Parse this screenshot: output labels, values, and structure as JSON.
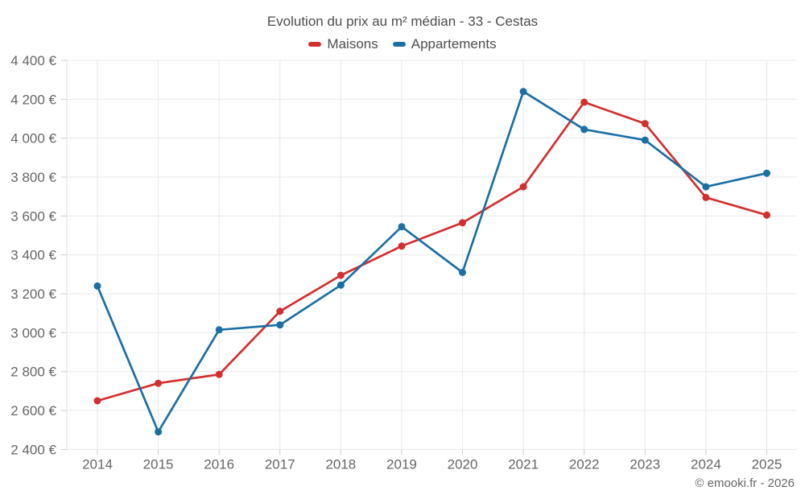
{
  "header": {
    "title": "Evolution du prix au m² médian - 33 - Cestas"
  },
  "legend": {
    "items": [
      {
        "label": "Maisons",
        "color": "#d32f2f"
      },
      {
        "label": "Appartements",
        "color": "#1a6fa4"
      }
    ]
  },
  "footer": {
    "credit": "© emooki.fr - 2026"
  },
  "colors": {
    "maisons": "#d32f2f",
    "appartements": "#1a6fa4",
    "grid": "#e8e8e8",
    "axis_line": "#e0e0e0",
    "tick": "#cccccc",
    "axis_text": "#666666",
    "title_text": "#4d4d4d",
    "footer_text": "#666666",
    "background": "#ffffff"
  },
  "chart_data": {
    "type": "line",
    "title": "Evolution du prix au m² médian - 33 - Cestas",
    "categories": [
      "2014",
      "2015",
      "2016",
      "2017",
      "2018",
      "2019",
      "2020",
      "2021",
      "2022",
      "2023",
      "2024",
      "2025"
    ],
    "series": [
      {
        "name": "Maisons",
        "color": "#d32f2f",
        "values": [
          2650,
          2740,
          2785,
          3110,
          3295,
          3445,
          3565,
          3750,
          4185,
          4075,
          3695,
          3605
        ]
      },
      {
        "name": "Appartements",
        "color": "#1a6fa4",
        "values": [
          3240,
          2490,
          3015,
          3040,
          3245,
          3545,
          3310,
          4240,
          4045,
          3990,
          3750,
          3820
        ]
      }
    ],
    "ylim": [
      2400,
      4400
    ],
    "ytick_step": 200,
    "yticks": [
      {
        "value": 2400,
        "label": "2 400 €"
      },
      {
        "value": 2600,
        "label": "2 600 €"
      },
      {
        "value": 2800,
        "label": "2 800 €"
      },
      {
        "value": 3000,
        "label": "3 000 €"
      },
      {
        "value": 3200,
        "label": "3 200 €"
      },
      {
        "value": 3400,
        "label": "3 400 €"
      },
      {
        "value": 3600,
        "label": "3 600 €"
      },
      {
        "value": 3800,
        "label": "3 800 €"
      },
      {
        "value": 4000,
        "label": "4 000 €"
      },
      {
        "value": 4200,
        "label": "4 200 €"
      },
      {
        "value": 4400,
        "label": "4 400 €"
      }
    ],
    "xlabel": "",
    "ylabel": "",
    "grid": true,
    "legend_position": "top",
    "marker": "circle"
  }
}
